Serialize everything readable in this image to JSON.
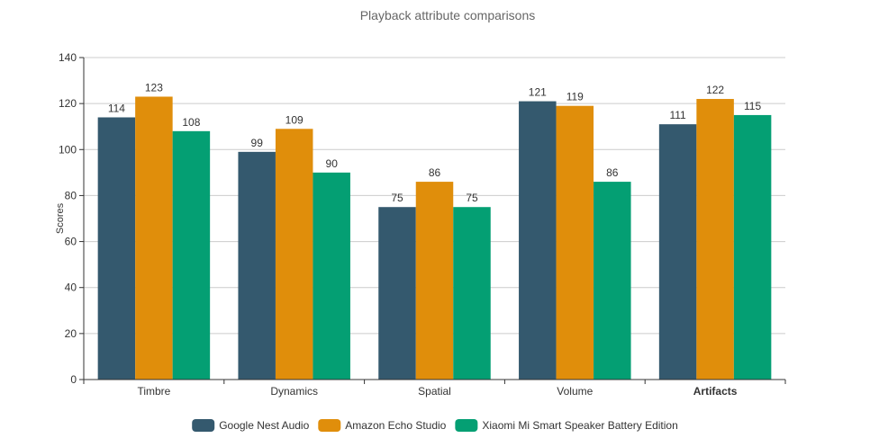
{
  "chart_data": {
    "type": "bar",
    "title": "Playback attribute comparisons",
    "xlabel": "",
    "ylabel": "Scores",
    "ylim": [
      0,
      140
    ],
    "yticks": [
      0,
      20,
      40,
      60,
      80,
      100,
      120,
      140
    ],
    "categories": [
      "Timbre",
      "Dynamics",
      "Spatial",
      "Volume",
      "Artifacts"
    ],
    "highlighted_category": "Artifacts",
    "grid": true,
    "legend_position": "bottom-center",
    "series": [
      {
        "name": "Google Nest Audio",
        "color": "#34596e",
        "values": [
          114,
          99,
          75,
          121,
          111
        ]
      },
      {
        "name": "Amazon Echo Studio",
        "color": "#e08e0b",
        "values": [
          123,
          109,
          86,
          119,
          122
        ]
      },
      {
        "name": "Xiaomi Mi Smart Speaker Battery Edition",
        "color": "#049f73",
        "values": [
          108,
          90,
          75,
          86,
          115
        ]
      }
    ]
  }
}
